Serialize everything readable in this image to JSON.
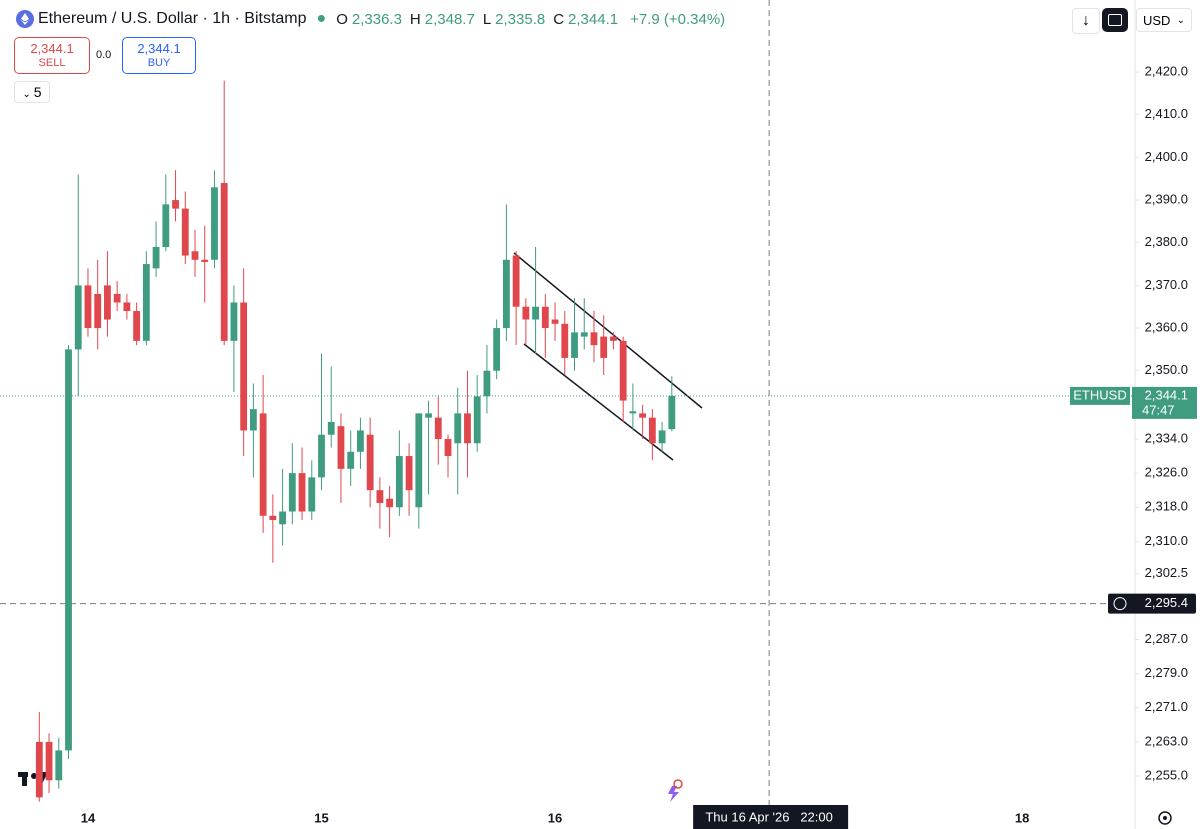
{
  "header": {
    "symbol": "Ethereum / U.S. Dollar · 1h · Bitstamp",
    "ohlc": [
      {
        "key": "O",
        "value": "2,336.3"
      },
      {
        "key": "H",
        "value": "2,348.7"
      },
      {
        "key": "L",
        "value": "2,335.8"
      },
      {
        "key": "C",
        "value": "2,344.1"
      }
    ],
    "change": "+7.9 (+0.34%)",
    "sell_price": "2,344.1",
    "sell_label": "SELL",
    "spread": "0.0",
    "buy_price": "2,344.1",
    "buy_label": "BUY",
    "indicators": "5",
    "currency": "USD"
  },
  "chart_data": {
    "type": "candlestick",
    "up_color": "#3f9c80",
    "down_color": "#e0474c",
    "open": [
      2263,
      2263,
      2254,
      2261,
      2355,
      2370,
      2368,
      2370,
      2368,
      2366,
      2364,
      2357,
      2374,
      2379,
      2390,
      2388,
      2378,
      2376,
      2376,
      2394,
      2357,
      2366,
      2336,
      2340,
      2316,
      2314,
      2317,
      2326,
      2317,
      2325,
      2335,
      2337,
      2327,
      2331,
      2335,
      2322,
      2320,
      2318,
      2330,
      2318,
      2339,
      2339,
      2334,
      2333,
      2340,
      2333,
      2344,
      2350,
      2360,
      2377,
      2365,
      2362,
      2365,
      2362,
      2361,
      2353,
      2358,
      2359,
      2358,
      2358,
      2357,
      2340,
      2340,
      2339,
      2333,
      2336.3
    ],
    "high": [
      2270,
      2265,
      2264,
      2356,
      2396,
      2374,
      2376,
      2378,
      2371,
      2368,
      2366,
      2378,
      2385,
      2396,
      2397,
      2392,
      2383,
      2384,
      2397,
      2418,
      2370,
      2374,
      2347,
      2349,
      2321,
      2327,
      2333,
      2332,
      2329,
      2354,
      2351,
      2340,
      2336,
      2339,
      2339,
      2325,
      2323,
      2336,
      2333,
      2340,
      2343,
      2344,
      2335,
      2346,
      2350,
      2349,
      2356,
      2362,
      2389,
      2378,
      2367,
      2379,
      2368,
      2366,
      2364,
      2367,
      2367,
      2364,
      2363,
      2359,
      2358,
      2347,
      2342,
      2341,
      2338,
      2348.7
    ],
    "low": [
      2249,
      2251,
      2252,
      2259,
      2344,
      2358,
      2355,
      2358,
      2364,
      2362,
      2356,
      2356,
      2372,
      2378,
      2385,
      2375,
      2372,
      2366,
      2374,
      2356,
      2345,
      2330,
      2325,
      2312,
      2305,
      2309,
      2314,
      2315,
      2315,
      2322,
      2332,
      2319,
      2323,
      2327,
      2318,
      2313,
      2311,
      2316,
      2316,
      2313,
      2321,
      2328,
      2325,
      2321,
      2325,
      2331,
      2340,
      2348,
      2357,
      2356,
      2356,
      2354,
      2353,
      2357,
      2349,
      2350,
      2355,
      2352,
      2349,
      2355,
      2338,
      2336,
      2334,
      2329,
      2331,
      2335.8
    ],
    "close": [
      2250,
      2254,
      2261,
      2355,
      2370,
      2360,
      2360,
      2362,
      2366,
      2364,
      2357,
      2375,
      2379,
      2389,
      2388,
      2377,
      2376,
      2375.5,
      2393,
      2357,
      2366,
      2336,
      2341,
      2316,
      2315,
      2317,
      2326,
      2317,
      2325,
      2335,
      2338,
      2327,
      2331,
      2336,
      2322,
      2319,
      2318,
      2330,
      2322,
      2340,
      2340,
      2334,
      2330,
      2340,
      2333,
      2344,
      2350,
      2360,
      2376,
      2365,
      2362,
      2365,
      2360,
      2361,
      2353,
      2359,
      2359,
      2356,
      2353,
      2357,
      2343,
      2340.5,
      2339,
      2333,
      2336,
      2344.1
    ],
    "xlim": [
      -4.04,
      112.6
    ],
    "xticks": [
      {
        "value": 5,
        "label": "14"
      },
      {
        "value": 29,
        "label": "15"
      },
      {
        "value": 53,
        "label": "16"
      },
      {
        "value": 101,
        "label": "18"
      }
    ],
    "ylim": [
      2247.5,
      2436.9
    ],
    "yticks": [
      {
        "value": 2420,
        "label": "2,420.0"
      },
      {
        "value": 2410,
        "label": "2,410.0"
      },
      {
        "value": 2400,
        "label": "2,400.0"
      },
      {
        "value": 2390,
        "label": "2,390.0"
      },
      {
        "value": 2380,
        "label": "2,380.0"
      },
      {
        "value": 2370,
        "label": "2,370.0"
      },
      {
        "value": 2360,
        "label": "2,360.0"
      },
      {
        "value": 2350,
        "label": "2,350.0"
      },
      {
        "value": 2334,
        "label": "2,334.0"
      },
      {
        "value": 2326,
        "label": "2,326.0"
      },
      {
        "value": 2318,
        "label": "2,318.0"
      },
      {
        "value": 2310,
        "label": "2,310.0"
      },
      {
        "value": 2302.5,
        "label": "2,302.5"
      },
      {
        "value": 2287,
        "label": "2,287.0"
      },
      {
        "value": 2279,
        "label": "2,279.0"
      },
      {
        "value": 2271,
        "label": "2,271.0"
      },
      {
        "value": 2263,
        "label": "2,263.0"
      },
      {
        "value": 2255,
        "label": "2,255.0"
      }
    ],
    "last_price": {
      "value": 2344.1,
      "label": "2,344.1",
      "symbol": "ETHUSD",
      "countdown": "47:47"
    },
    "crosshair": {
      "y": {
        "value": 2295.4,
        "label": "2,295.4"
      },
      "x": {
        "value": 75,
        "label": "Thu 16 Apr '26   22:00"
      }
    }
  }
}
